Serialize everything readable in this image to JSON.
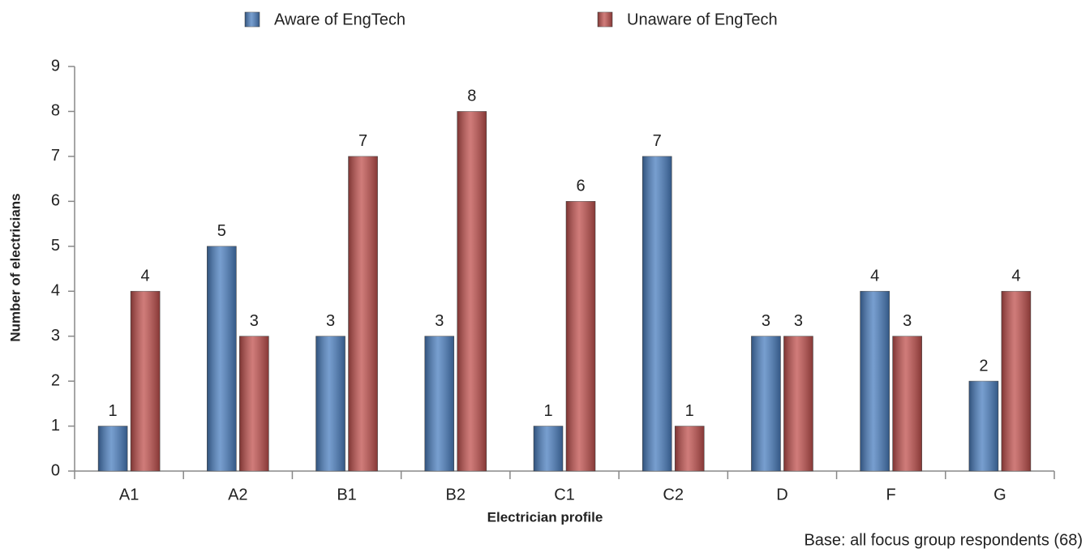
{
  "chart_data": {
    "type": "bar",
    "categories": [
      "A1",
      "A2",
      "B1",
      "B2",
      "C1",
      "C2",
      "D",
      "F",
      "G"
    ],
    "series": [
      {
        "name": "Aware of EngTech",
        "color": "#4a7ebf",
        "values": [
          1,
          5,
          3,
          3,
          1,
          7,
          3,
          4,
          2
        ]
      },
      {
        "name": "Unaware of EngTech",
        "color": "#c0504d",
        "values": [
          4,
          3,
          7,
          8,
          6,
          1,
          3,
          3,
          4
        ]
      }
    ],
    "y_label": "Number of electricians",
    "x_label": "Electrician profile",
    "note": "Base: all focus group respondents (68)",
    "ylim": [
      0,
      9
    ],
    "yticks": [
      0,
      1,
      2,
      3,
      4,
      5,
      6,
      7,
      8,
      9
    ],
    "legend": "top"
  }
}
